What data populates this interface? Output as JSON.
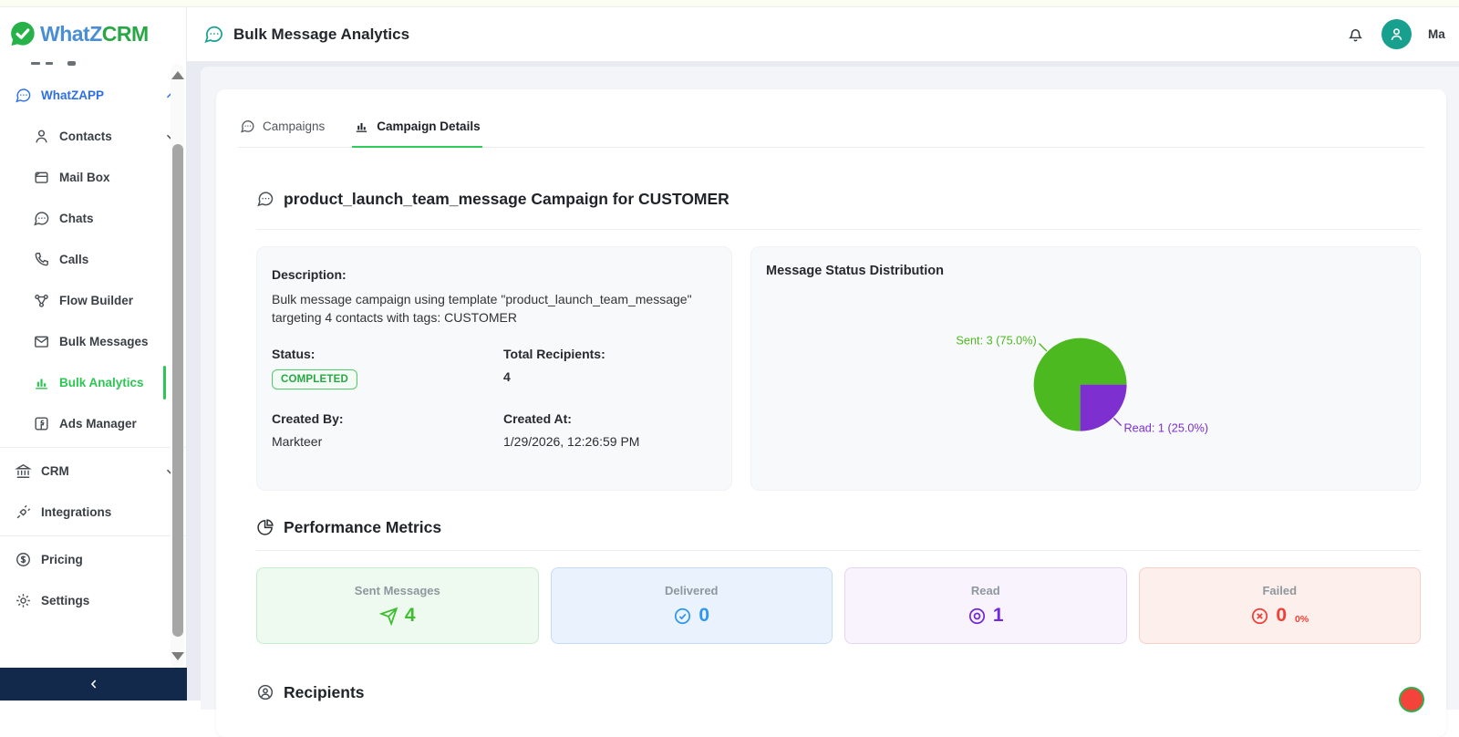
{
  "brand": {
    "logo_text_primary": "WhatZ",
    "logo_text_secondary": "CRM",
    "color_blue": "#4a8fd6",
    "color_green": "#28a745"
  },
  "header": {
    "title": "Bulk Message Analytics",
    "user_name": "Ma"
  },
  "sidebar": {
    "items": [
      {
        "label": "WhatZAPP",
        "icon": "chat-dots-icon",
        "chevron": "up",
        "section_active": true
      },
      {
        "label": "Contacts",
        "icon": "person-icon",
        "chevron": "down"
      },
      {
        "label": "Mail Box",
        "icon": "mail-icon"
      },
      {
        "label": "Chats",
        "icon": "chat-dots-icon"
      },
      {
        "label": "Calls",
        "icon": "phone-icon"
      },
      {
        "label": "Flow Builder",
        "icon": "flow-icon"
      },
      {
        "label": "Bulk Messages",
        "icon": "envelope-icon"
      },
      {
        "label": "Bulk Analytics",
        "icon": "bar-chart-icon",
        "active": true
      },
      {
        "label": "Ads Manager",
        "icon": "facebook-icon"
      },
      {
        "label": "CRM",
        "icon": "bank-icon",
        "chevron": "down"
      },
      {
        "label": "Integrations",
        "icon": "plug-icon"
      },
      {
        "label": "Pricing",
        "icon": "dollar-circle-icon"
      },
      {
        "label": "Settings",
        "icon": "gear-icon"
      }
    ],
    "active_color": "#2dc653"
  },
  "tabs": [
    {
      "label": "Campaigns",
      "icon": "chat-dots-icon",
      "active": false
    },
    {
      "label": "Campaign Details",
      "icon": "bar-chart-icon",
      "active": true
    }
  ],
  "campaign": {
    "title": "product_launch_team_message Campaign for CUSTOMER",
    "description_label": "Description:",
    "description": "Bulk message campaign using template \"product_launch_team_message\" targeting 4 contacts with tags: CUSTOMER",
    "status_label": "Status:",
    "status": "COMPLETED",
    "status_color": "#28a745",
    "total_recipients_label": "Total Recipients:",
    "total_recipients": "4",
    "created_by_label": "Created By:",
    "created_by": "Markteer",
    "created_at_label": "Created At:",
    "created_at": "1/29/2026, 12:26:59 PM"
  },
  "chart_data": {
    "type": "pie",
    "title": "Message Status Distribution",
    "start_angle_deg": 90,
    "clockwise": true,
    "legend_position": "callout-labels",
    "slices": [
      {
        "label": "Sent",
        "value": 3,
        "percent": 75.0,
        "color": "#4cb921",
        "display": "Sent: 3 (75.0%)"
      },
      {
        "label": "Read",
        "value": 1,
        "percent": 25.0,
        "color": "#7d2fd0",
        "display": "Read: 1 (25.0%)"
      }
    ]
  },
  "performance": {
    "heading": "Performance Metrics",
    "cards": [
      {
        "label": "Sent Messages",
        "value": "4",
        "icon": "send-icon",
        "bg": "#eefaf0",
        "border": "#c6ecca",
        "accent": "#3cbf2c"
      },
      {
        "label": "Delivered",
        "value": "0",
        "icon": "check-circle-icon",
        "bg": "#eaf3fd",
        "border": "#c3dcf6",
        "accent": "#2e96f0"
      },
      {
        "label": "Read",
        "value": "1",
        "icon": "eye-icon",
        "bg": "#f8f3fc",
        "border": "#e3d7f3",
        "accent": "#7229d6"
      },
      {
        "label": "Failed",
        "value": "0",
        "sub": "0%",
        "icon": "x-circle-icon",
        "bg": "#fdefec",
        "border": "#f6cfc7",
        "accent": "#f23e36"
      }
    ]
  },
  "recipients": {
    "heading": "Recipients"
  }
}
